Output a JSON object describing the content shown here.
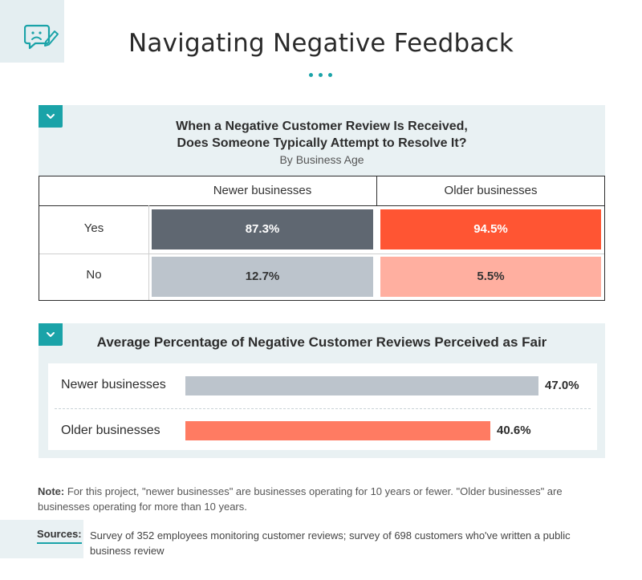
{
  "header": {
    "title": "Navigating Negative Feedback",
    "icon": "feedback-clipboard-icon"
  },
  "colors": {
    "accent": "#1aa3a8",
    "newer_dark": "#5f6771",
    "newer_light": "#bcc4cc",
    "older_dark": "#ff5533",
    "older_light": "#ffafa0",
    "bar_newer": "#bcc4cc",
    "bar_older": "#ff7b62"
  },
  "chart_data": [
    {
      "type": "table",
      "title": "When a Negative Customer Review Is Received, Does Someone Typically Attempt to Resolve It?",
      "title_line1": "When a Negative Customer Review Is Received,",
      "title_line2": "Does Someone Typically Attempt to Resolve It?",
      "subtitle": "By Business Age",
      "columns": [
        "Newer businesses",
        "Older businesses"
      ],
      "rows": [
        "Yes",
        "No"
      ],
      "values": [
        [
          87.3,
          94.5
        ],
        [
          12.7,
          5.5
        ]
      ],
      "labels": [
        [
          "87.3%",
          "94.5%"
        ],
        [
          "12.7%",
          "5.5%"
        ]
      ],
      "unit": "%"
    },
    {
      "type": "bar",
      "title": "Average Percentage of Negative Customer Reviews Perceived as Fair",
      "categories": [
        "Newer businesses",
        "Older businesses"
      ],
      "values": [
        47.0,
        40.6
      ],
      "labels": [
        "47.0%",
        "40.6%"
      ],
      "unit": "%"
    }
  ],
  "footer": {
    "note_label": "Note:",
    "note_text": " For this project, \"newer businesses\" are businesses operating for 10 years or fewer. \"Older businesses\" are businesses operating for more than 10 years.",
    "sources_label": "Sources:",
    "sources_text": "Survey of 352 employees monitoring customer reviews; survey of 698 customers who've written a public business review"
  }
}
